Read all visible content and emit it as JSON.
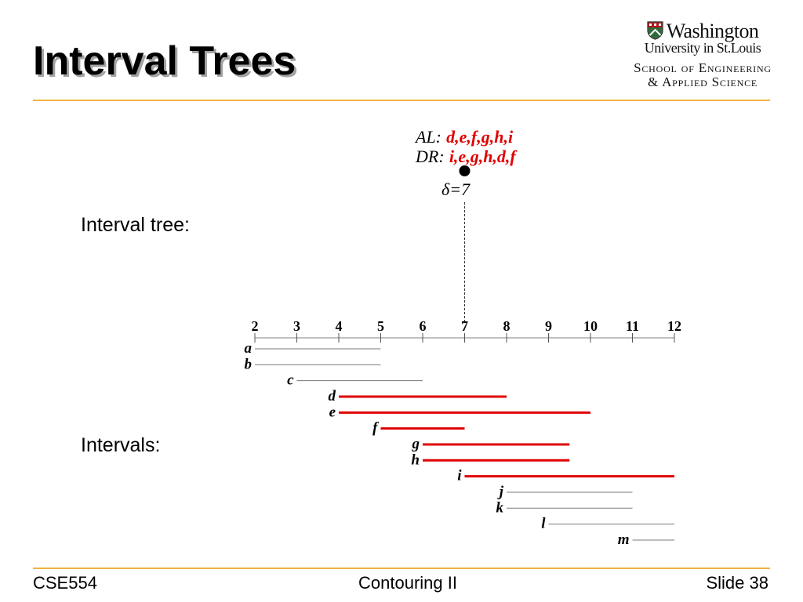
{
  "slide": {
    "title": "Interval Trees",
    "footer": {
      "course": "CSE554",
      "topic": "Contouring II",
      "slide_number": "Slide 38"
    }
  },
  "logo": {
    "name": "Washington",
    "subtitle": "University in St.Louis",
    "school_line1": "School of Engineering",
    "school_line2": "& Applied Science"
  },
  "labels": {
    "tree": "Interval tree:",
    "intervals": "Intervals:"
  },
  "node": {
    "al_label": "AL:",
    "al_list": "d,e,f,g,h,i",
    "dr_label": "DR:",
    "dr_list": "i,e,g,h,d,f",
    "delta_text": "δ=7",
    "delta": 7
  },
  "axis": {
    "min": 2,
    "max": 12,
    "ticks": [
      2,
      3,
      4,
      5,
      6,
      7,
      8,
      9,
      10,
      11,
      12
    ]
  },
  "intervals": [
    {
      "name": "a",
      "start": 2,
      "end": 5,
      "highlighted": false
    },
    {
      "name": "b",
      "start": 2,
      "end": 5,
      "highlighted": false
    },
    {
      "name": "c",
      "start": 3,
      "end": 6,
      "highlighted": false
    },
    {
      "name": "d",
      "start": 4,
      "end": 8,
      "highlighted": true
    },
    {
      "name": "e",
      "start": 4,
      "end": 10,
      "highlighted": true
    },
    {
      "name": "f",
      "start": 5,
      "end": 7,
      "highlighted": true
    },
    {
      "name": "g",
      "start": 6,
      "end": 9.5,
      "highlighted": true
    },
    {
      "name": "h",
      "start": 6,
      "end": 9.5,
      "highlighted": true
    },
    {
      "name": "i",
      "start": 7,
      "end": 12,
      "highlighted": true
    },
    {
      "name": "j",
      "start": 8,
      "end": 11,
      "highlighted": false
    },
    {
      "name": "k",
      "start": 8,
      "end": 11,
      "highlighted": false
    },
    {
      "name": "l",
      "start": 9,
      "end": 12,
      "highlighted": false
    },
    {
      "name": "m",
      "start": 11,
      "end": 12,
      "highlighted": false
    }
  ],
  "colors": {
    "rule": "#f2b341",
    "highlight": "#e00000",
    "interval": "#7a7a7a",
    "axis": "#808080"
  }
}
